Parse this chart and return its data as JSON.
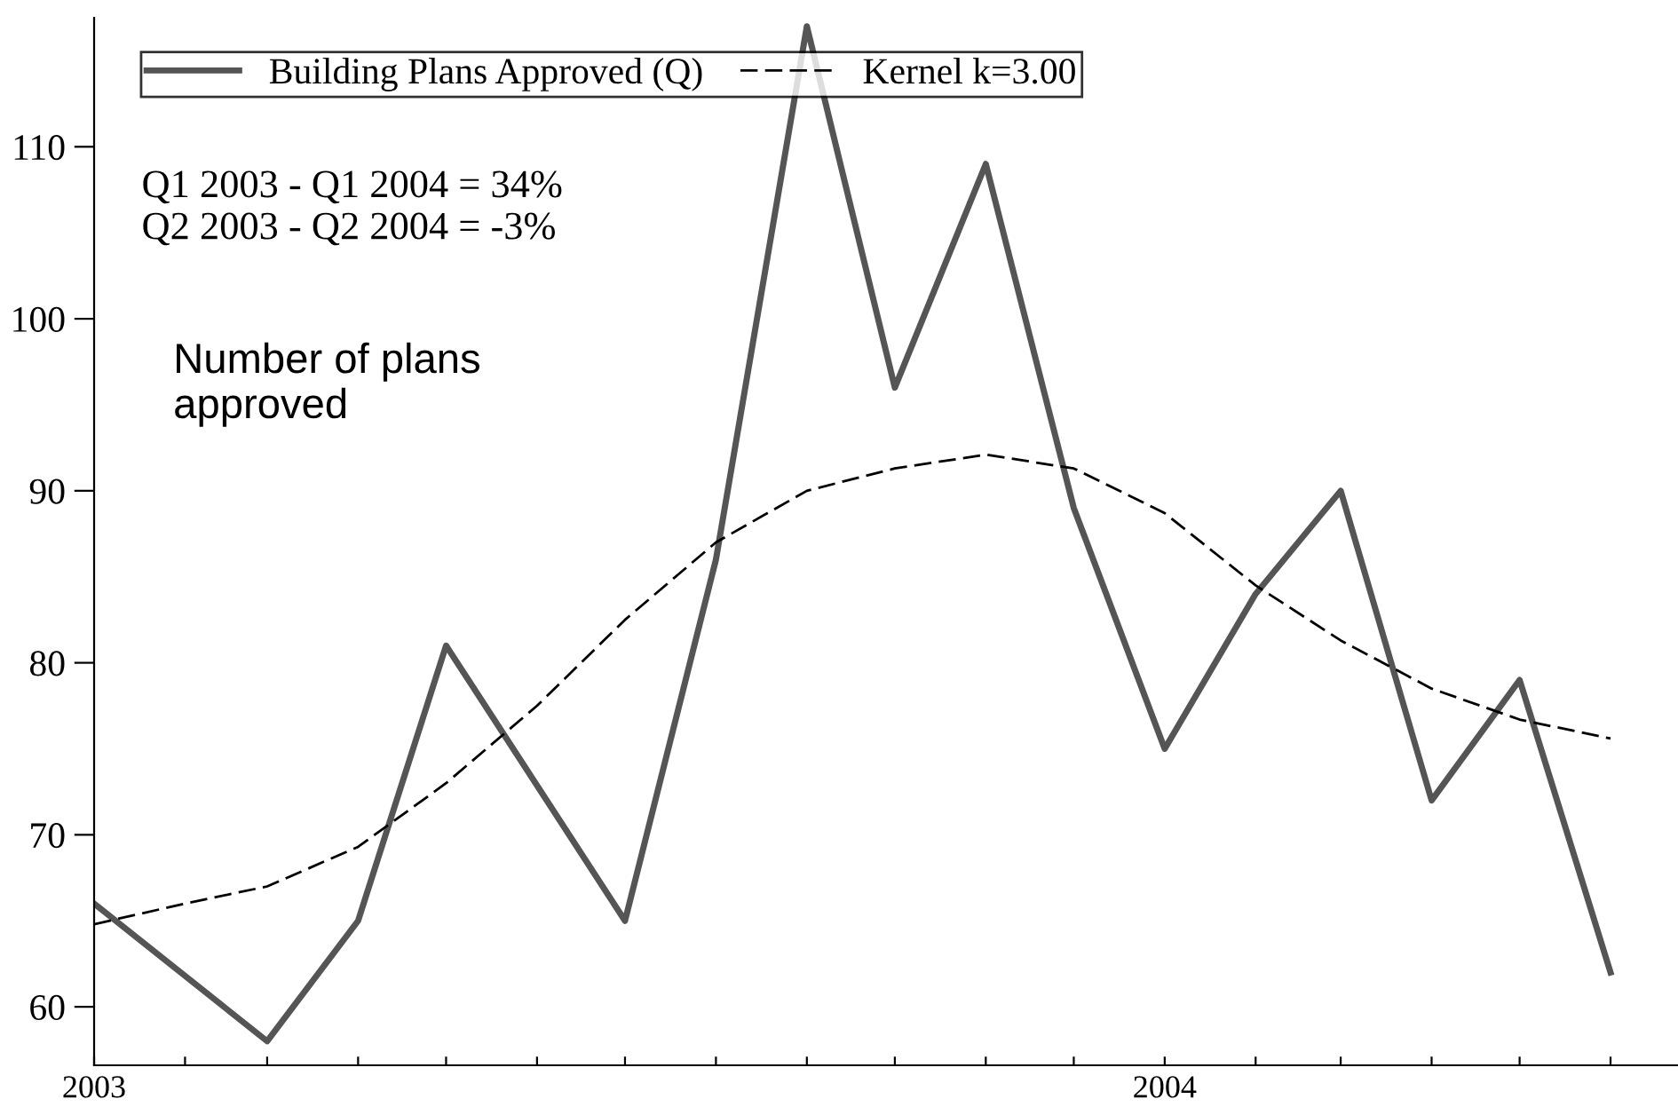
{
  "chart_data": {
    "type": "line",
    "series": [
      {
        "name": "Building Plans Approved (Q)",
        "color": "#555555",
        "line_style": "solid",
        "x": [
          "2003-01",
          "2003-03",
          "2003-04",
          "2003-05",
          "2003-07",
          "2003-08",
          "2003-09",
          "2003-10",
          "2003-11",
          "2003-12",
          "2004-01",
          "2004-02",
          "2004-03",
          "2004-04",
          "2004-05",
          "2004-06"
        ],
        "values": [
          66,
          58,
          65,
          81,
          65,
          86,
          117,
          96,
          109,
          89,
          75,
          84,
          90,
          72,
          79,
          62
        ]
      },
      {
        "name": "Kernel k=3.00",
        "color": "#000000",
        "line_style": "dashed",
        "x": [
          "2003-01",
          "2003-02",
          "2003-03",
          "2003-04",
          "2003-05",
          "2003-06",
          "2003-07",
          "2003-08",
          "2003-09",
          "2003-10",
          "2003-11",
          "2003-12",
          "2004-01",
          "2004-02",
          "2004-03",
          "2004-04",
          "2004-05",
          "2004-06"
        ],
        "values": [
          64.8,
          66,
          67,
          69.3,
          73,
          77.5,
          82.5,
          87,
          90,
          91.3,
          92.1,
          91.3,
          88.7,
          84.5,
          81.3,
          78.5,
          76.7,
          75.6
        ]
      }
    ],
    "annotations": [
      "Q1 2003 - Q1 2004 = 34%",
      "Q2 2003 - Q2 2004 = -3%",
      "Number of plans\napproved"
    ],
    "xlim": [
      "2003-01",
      "2004-06-24"
    ],
    "xticks": [
      {
        "value": "2003-01",
        "label": "2003"
      },
      {
        "value": "2003-02",
        "label": null
      },
      {
        "value": "2003-03",
        "label": null
      },
      {
        "value": "2003-04",
        "label": null
      },
      {
        "value": "2003-05",
        "label": null
      },
      {
        "value": "2003-06",
        "label": null
      },
      {
        "value": "2003-07",
        "label": null
      },
      {
        "value": "2003-08",
        "label": null
      },
      {
        "value": "2003-09",
        "label": null
      },
      {
        "value": "2003-10",
        "label": null
      },
      {
        "value": "2003-11",
        "label": null
      },
      {
        "value": "2003-12",
        "label": null
      },
      {
        "value": "2004-01",
        "label": "2004"
      },
      {
        "value": "2004-02",
        "label": null
      },
      {
        "value": "2004-03",
        "label": null
      },
      {
        "value": "2004-04",
        "label": null
      },
      {
        "value": "2004-05",
        "label": null
      },
      {
        "value": "2004-06",
        "label": null
      }
    ],
    "ylim": [
      56.6,
      117.5
    ],
    "yticks": [
      60,
      70,
      80,
      90,
      100,
      110
    ],
    "grid": false,
    "legend": "top left",
    "marker": "none"
  }
}
